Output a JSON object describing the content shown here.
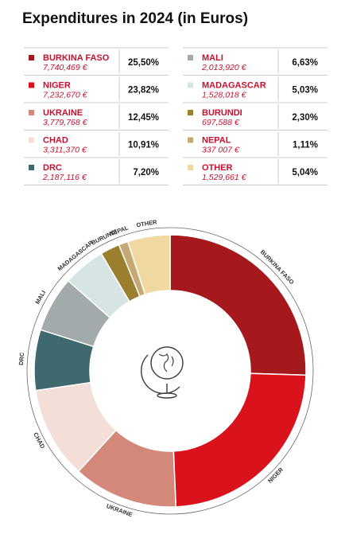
{
  "chart_data": {
    "type": "pie",
    "title": "Expenditures in 2024 (in Euros)",
    "categories": [
      "BURKINA FASO",
      "NIGER",
      "UKRAINE",
      "CHAD",
      "DRC",
      "MALI",
      "MADAGASCAR",
      "BURUNDI",
      "NEPAL",
      "OTHER"
    ],
    "values": [
      25.5,
      23.82,
      12.45,
      10.91,
      7.2,
      6.63,
      5.03,
      2.3,
      1.11,
      5.04
    ],
    "value_labels": [
      "25,50%",
      "23,82%",
      "12,45%",
      "10,91%",
      "7,20%",
      "6,63%",
      "5,03%",
      "2,30%",
      "1,11%",
      "5,04%"
    ],
    "amount_labels": [
      "7,740,469 €",
      "7,232,670 €",
      "3,779,768 €",
      "3,311,370 €",
      "2,187,116 €",
      "2,013,920 €",
      "1,528,018 €",
      "697,588 €",
      "337 007 €",
      "1,529,661 €"
    ],
    "colors": [
      "#a5191c",
      "#d9121b",
      "#d4887a",
      "#f3dfd8",
      "#3e6a6f",
      "#a3aaac",
      "#d6e4e4",
      "#9b7f2f",
      "#c5a874",
      "#f0d9a0"
    ]
  }
}
